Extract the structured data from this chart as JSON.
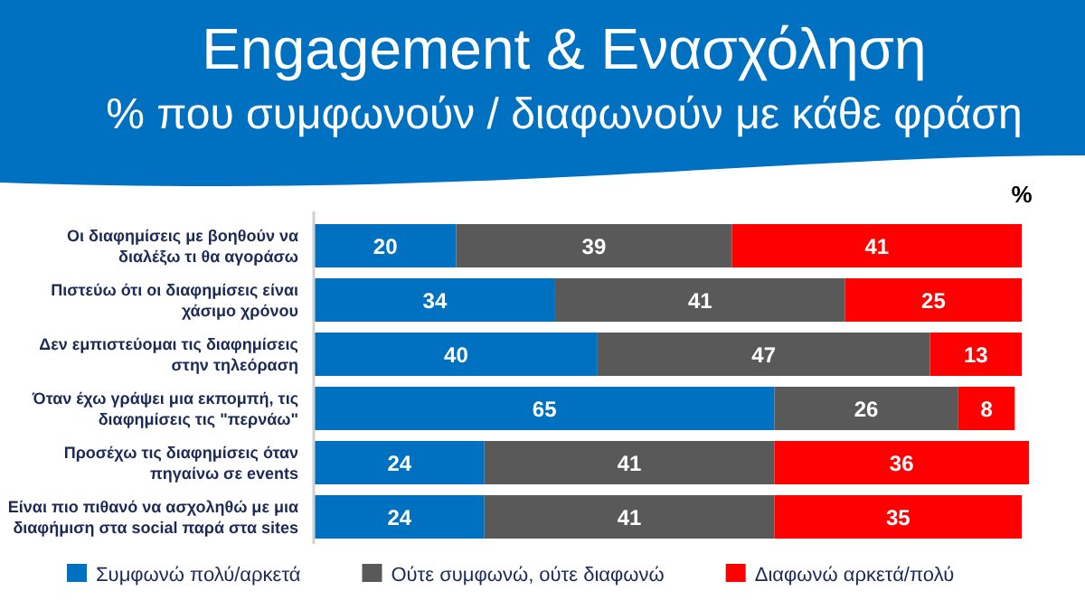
{
  "chart_data": {
    "type": "bar",
    "orientation": "horizontal",
    "stacked": true,
    "title": "Engagement & Ενασχόληση",
    "subtitle": "% που συμφωνούν / διαφωνούν με κάθε φράση",
    "xlabel": "%",
    "categories": [
      "Οι διαφημίσεις με βοηθούν να\nδιαλέξω τι θα αγοράσω",
      "Πιστεύω ότι οι διαφημίσεις είναι\nχάσιμο χρόνου",
      "Δεν εμπιστεύομαι τις διαφημίσεις\nστην τηλεόραση",
      "Όταν έχω γράψει μια εκπομπή, τις\nδιαφημίσεις τις \"περνάω\"",
      "Προσέχω τις διαφημίσεις όταν\nπηγαίνω σε events",
      "Είναι πιο πιθανό να ασχοληθώ με μια\nδιαφήμιση στα social παρά στα sites"
    ],
    "series": [
      {
        "name": "Συμφωνώ πολύ/αρκετά",
        "color": "#0070c0",
        "values": [
          20,
          34,
          40,
          65,
          24,
          24
        ]
      },
      {
        "name": "Ούτε συμφωνώ, ούτε διαφωνώ",
        "color": "#595959",
        "values": [
          39,
          41,
          47,
          26,
          41,
          41
        ]
      },
      {
        "name": "Διαφωνώ αρκετά/πολύ",
        "color": "#ff0000",
        "values": [
          41,
          25,
          13,
          8,
          36,
          35
        ]
      }
    ],
    "data_labels": true,
    "legend": "bottom"
  }
}
